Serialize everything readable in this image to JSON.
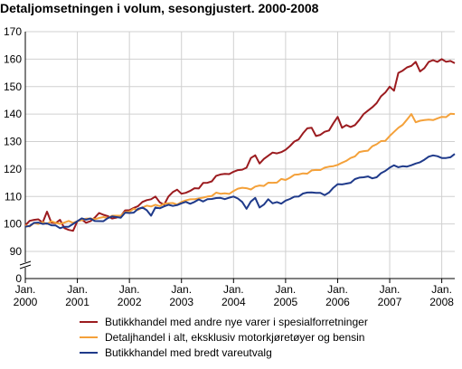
{
  "chart_data": {
    "type": "line",
    "title": "Detaljomsetningen i volum, sesongjustert. 2000-2008",
    "xlabel": "",
    "ylabel": "",
    "ylim": [
      0,
      170
    ],
    "y_ticks": [
      "170",
      "160",
      "150",
      "140",
      "130",
      "120",
      "110",
      "100",
      "90",
      "0"
    ],
    "axis_break": true,
    "grid": true,
    "x_ticks": [
      {
        "month": "Jan.",
        "year": "2000"
      },
      {
        "month": "Jan.",
        "year": "2001"
      },
      {
        "month": "Jan.",
        "year": "2002"
      },
      {
        "month": "Jan.",
        "year": "2003"
      },
      {
        "month": "Jan.",
        "year": "2004"
      },
      {
        "month": "Jan.",
        "year": "2005"
      },
      {
        "month": "Jan.",
        "year": "2006"
      },
      {
        "month": "Jan.",
        "year": "2007"
      },
      {
        "month": "Jan.",
        "year": "2008"
      }
    ],
    "x_start": "2000-01",
    "x_end": "2008-04",
    "legend_position": "bottom",
    "series": [
      {
        "name": "Butikkhandel med andre nye varer i spesialforretninger",
        "color": "#9b1b1f",
        "anchors": [
          [
            "2000-01",
            99.5
          ],
          [
            "2000-03",
            101.5
          ],
          [
            "2000-05",
            100.5
          ],
          [
            "2000-06",
            104.5
          ],
          [
            "2000-07",
            100.5
          ],
          [
            "2000-09",
            101.5
          ],
          [
            "2000-10",
            98.5
          ],
          [
            "2000-12",
            97.5
          ],
          [
            "2001-01",
            101
          ],
          [
            "2001-04",
            101
          ],
          [
            "2001-06",
            104
          ],
          [
            "2001-09",
            102
          ],
          [
            "2002-01",
            105
          ],
          [
            "2002-04",
            108
          ],
          [
            "2002-07",
            110
          ],
          [
            "2002-09",
            107
          ],
          [
            "2002-10",
            110
          ],
          [
            "2002-12",
            112.5
          ],
          [
            "2003-01",
            111
          ],
          [
            "2003-04",
            113
          ],
          [
            "2003-07",
            115
          ],
          [
            "2003-10",
            118
          ],
          [
            "2004-01",
            119
          ],
          [
            "2004-04",
            120.5
          ],
          [
            "2004-05",
            124
          ],
          [
            "2004-06",
            125
          ],
          [
            "2004-07",
            122
          ],
          [
            "2004-10",
            126
          ],
          [
            "2005-01",
            127
          ],
          [
            "2005-03",
            130
          ],
          [
            "2005-05",
            133
          ],
          [
            "2005-07",
            135
          ],
          [
            "2005-08",
            132
          ],
          [
            "2005-11",
            134
          ],
          [
            "2006-01",
            139
          ],
          [
            "2006-02",
            135
          ],
          [
            "2006-05",
            136
          ],
          [
            "2006-07",
            140
          ],
          [
            "2006-10",
            144
          ],
          [
            "2007-01",
            150
          ],
          [
            "2007-02",
            148.5
          ],
          [
            "2007-03",
            155
          ],
          [
            "2007-05",
            157
          ],
          [
            "2007-07",
            159
          ],
          [
            "2007-08",
            155.5
          ],
          [
            "2007-10",
            159
          ],
          [
            "2008-01",
            160
          ],
          [
            "2008-04",
            158.5
          ]
        ]
      },
      {
        "name": "Detaljhandel i alt, eksklusiv motorkjøretøyer og bensin",
        "color": "#f4a13a",
        "anchors": [
          [
            "2000-01",
            99.5
          ],
          [
            "2000-04",
            100
          ],
          [
            "2000-07",
            101
          ],
          [
            "2000-10",
            100.5
          ],
          [
            "2001-01",
            101
          ],
          [
            "2001-04",
            102
          ],
          [
            "2001-07",
            102.5
          ],
          [
            "2001-10",
            103
          ],
          [
            "2002-01",
            104.5
          ],
          [
            "2002-04",
            106
          ],
          [
            "2002-07",
            107
          ],
          [
            "2002-10",
            107.5
          ],
          [
            "2003-01",
            108
          ],
          [
            "2003-04",
            109
          ],
          [
            "2003-07",
            110
          ],
          [
            "2003-10",
            111
          ],
          [
            "2004-01",
            112
          ],
          [
            "2004-04",
            113
          ],
          [
            "2004-07",
            114
          ],
          [
            "2004-10",
            115
          ],
          [
            "2005-01",
            116
          ],
          [
            "2005-04",
            118
          ],
          [
            "2005-07",
            119.5
          ],
          [
            "2005-10",
            120.5
          ],
          [
            "2006-01",
            121.5
          ],
          [
            "2006-04",
            124
          ],
          [
            "2006-07",
            126.5
          ],
          [
            "2006-10",
            129
          ],
          [
            "2007-01",
            132
          ],
          [
            "2007-03",
            135
          ],
          [
            "2007-05",
            138
          ],
          [
            "2007-06",
            140
          ],
          [
            "2007-07",
            137
          ],
          [
            "2007-10",
            138
          ],
          [
            "2008-01",
            139
          ],
          [
            "2008-04",
            140
          ]
        ]
      },
      {
        "name": "Butikkhandel med bredt vareutvalg",
        "color": "#1f3a8a",
        "anchors": [
          [
            "2000-01",
            99
          ],
          [
            "2000-04",
            100.5
          ],
          [
            "2000-07",
            99.5
          ],
          [
            "2000-10",
            99
          ],
          [
            "2000-12",
            100
          ],
          [
            "2001-01",
            101
          ],
          [
            "2001-04",
            102
          ],
          [
            "2001-07",
            101
          ],
          [
            "2001-10",
            102.5
          ],
          [
            "2002-01",
            104
          ],
          [
            "2002-04",
            106
          ],
          [
            "2002-06",
            103
          ],
          [
            "2002-07",
            106
          ],
          [
            "2002-10",
            107
          ],
          [
            "2003-01",
            107.5
          ],
          [
            "2003-04",
            108
          ],
          [
            "2003-07",
            109
          ],
          [
            "2003-10",
            109.5
          ],
          [
            "2004-01",
            110
          ],
          [
            "2004-03",
            108
          ],
          [
            "2004-04",
            105.5
          ],
          [
            "2004-06",
            109.5
          ],
          [
            "2004-07",
            106
          ],
          [
            "2004-09",
            109
          ],
          [
            "2004-10",
            107.5
          ],
          [
            "2005-01",
            108.5
          ],
          [
            "2005-04",
            110
          ],
          [
            "2005-07",
            111.5
          ],
          [
            "2005-10",
            110.5
          ],
          [
            "2006-01",
            114.5
          ],
          [
            "2006-04",
            115
          ],
          [
            "2006-07",
            117
          ],
          [
            "2006-10",
            117
          ],
          [
            "2007-01",
            120.5
          ],
          [
            "2007-04",
            121
          ],
          [
            "2007-07",
            122
          ],
          [
            "2007-10",
            124.5
          ],
          [
            "2008-01",
            124
          ],
          [
            "2008-04",
            125.5
          ]
        ]
      }
    ]
  }
}
